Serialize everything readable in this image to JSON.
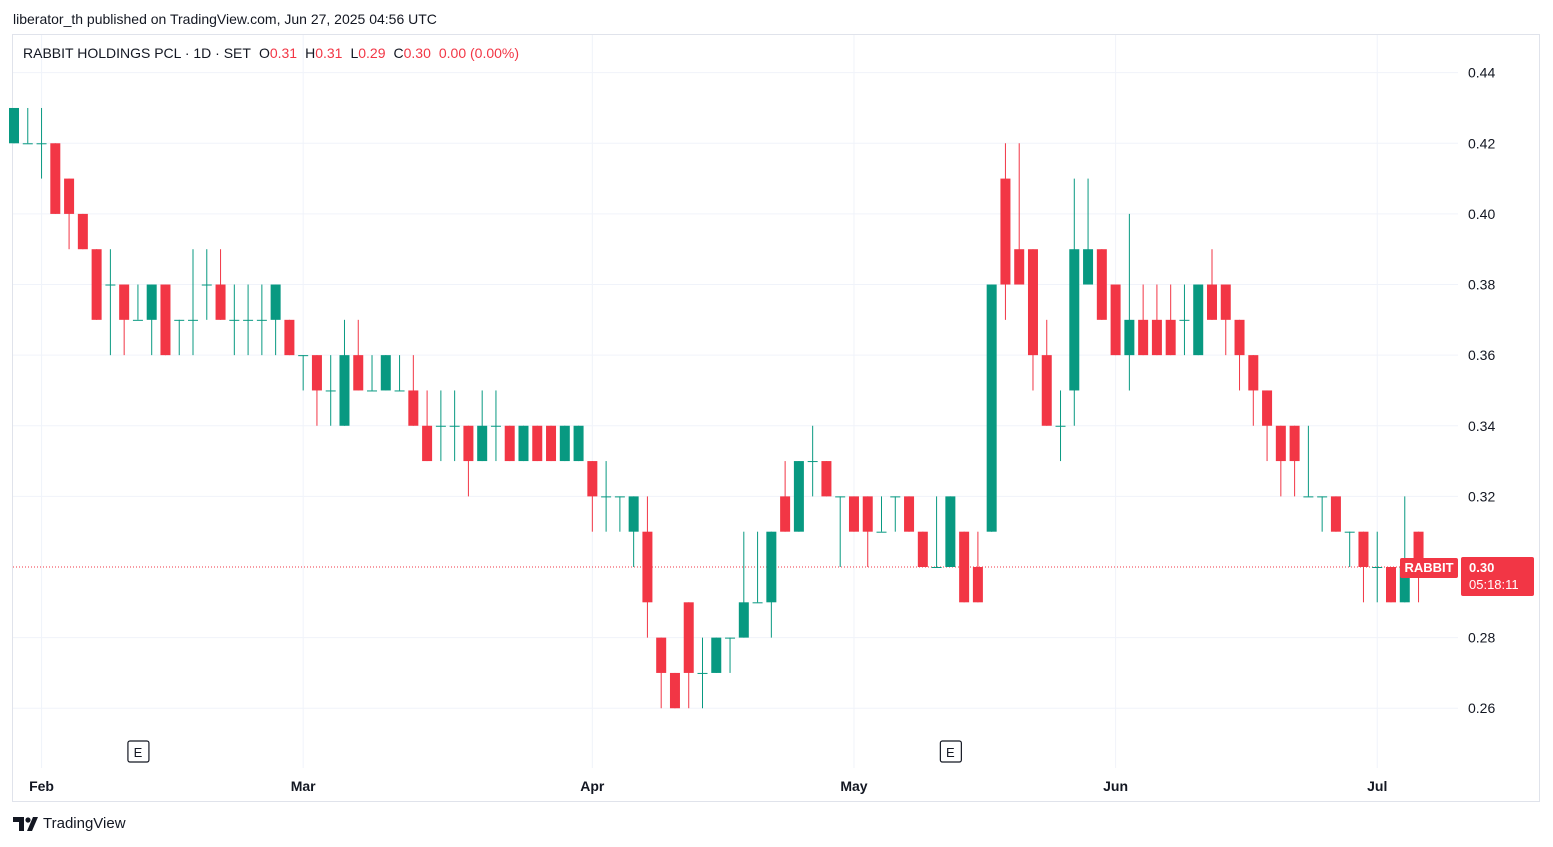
{
  "published_line": "liberator_th published on TradingView.com, Jun 27, 2025 04:56 UTC",
  "legend": {
    "symbol": "RABBIT HOLDINGS PCL · 1D · SET",
    "o_label": "O",
    "o_value": "0.31",
    "h_label": "H",
    "h_value": "0.31",
    "l_label": "L",
    "l_value": "0.29",
    "c_label": "C",
    "c_value": "0.30",
    "change": "0.00 (0.00%)"
  },
  "price_badge": {
    "ticker": "RABBIT",
    "price": "0.30",
    "countdown": "05:18:11"
  },
  "footer": {
    "brand": "TradingView"
  },
  "colors": {
    "up": "#089981",
    "down": "#f23645",
    "grid": "#f0f3fa",
    "text": "#131722"
  },
  "chart_data": {
    "type": "candlestick",
    "y_ticks": [
      "0.44",
      "0.42",
      "0.40",
      "0.38",
      "0.36",
      "0.34",
      "0.32",
      "0.28",
      "0.26"
    ],
    "ylim": [
      0.245,
      0.45
    ],
    "x_ticks": [
      {
        "label": "Feb",
        "day": 2
      },
      {
        "label": "Mar",
        "day": 21
      },
      {
        "label": "Apr",
        "day": 42
      },
      {
        "label": "May",
        "day": 61
      },
      {
        "label": "Jun",
        "day": 80
      },
      {
        "label": "Jul",
        "day": 99
      }
    ],
    "earnings_markers": [
      {
        "label": "E",
        "day": 9
      },
      {
        "label": "E",
        "day": 68
      }
    ],
    "last_price": 0.3,
    "ohlc": [
      [
        0.42,
        0.43,
        0.42,
        0.43
      ],
      [
        0.42,
        0.43,
        0.42,
        0.42
      ],
      [
        0.42,
        0.43,
        0.41,
        0.42
      ],
      [
        0.42,
        0.42,
        0.4,
        0.4
      ],
      [
        0.41,
        0.41,
        0.39,
        0.4
      ],
      [
        0.4,
        0.4,
        0.39,
        0.39
      ],
      [
        0.39,
        0.39,
        0.37,
        0.37
      ],
      [
        0.38,
        0.39,
        0.36,
        0.38
      ],
      [
        0.38,
        0.38,
        0.36,
        0.37
      ],
      [
        0.37,
        0.38,
        0.37,
        0.37
      ],
      [
        0.37,
        0.38,
        0.36,
        0.38
      ],
      [
        0.38,
        0.38,
        0.36,
        0.36
      ],
      [
        0.37,
        0.37,
        0.36,
        0.37
      ],
      [
        0.37,
        0.39,
        0.36,
        0.37
      ],
      [
        0.38,
        0.39,
        0.37,
        0.38
      ],
      [
        0.38,
        0.39,
        0.37,
        0.37
      ],
      [
        0.37,
        0.38,
        0.36,
        0.37
      ],
      [
        0.37,
        0.38,
        0.36,
        0.37
      ],
      [
        0.37,
        0.38,
        0.36,
        0.37
      ],
      [
        0.37,
        0.38,
        0.36,
        0.38
      ],
      [
        0.37,
        0.37,
        0.36,
        0.36
      ],
      [
        0.36,
        0.36,
        0.35,
        0.36
      ],
      [
        0.36,
        0.36,
        0.34,
        0.35
      ],
      [
        0.35,
        0.36,
        0.34,
        0.35
      ],
      [
        0.34,
        0.37,
        0.34,
        0.36
      ],
      [
        0.36,
        0.37,
        0.35,
        0.35
      ],
      [
        0.35,
        0.36,
        0.35,
        0.35
      ],
      [
        0.35,
        0.36,
        0.35,
        0.36
      ],
      [
        0.35,
        0.36,
        0.35,
        0.35
      ],
      [
        0.35,
        0.36,
        0.34,
        0.34
      ],
      [
        0.34,
        0.35,
        0.33,
        0.33
      ],
      [
        0.34,
        0.35,
        0.33,
        0.34
      ],
      [
        0.34,
        0.35,
        0.33,
        0.34
      ],
      [
        0.34,
        0.34,
        0.32,
        0.33
      ],
      [
        0.33,
        0.35,
        0.33,
        0.34
      ],
      [
        0.34,
        0.35,
        0.33,
        0.34
      ],
      [
        0.34,
        0.34,
        0.33,
        0.33
      ],
      [
        0.33,
        0.34,
        0.33,
        0.34
      ],
      [
        0.34,
        0.34,
        0.33,
        0.33
      ],
      [
        0.34,
        0.34,
        0.33,
        0.33
      ],
      [
        0.33,
        0.34,
        0.33,
        0.34
      ],
      [
        0.33,
        0.34,
        0.33,
        0.34
      ],
      [
        0.33,
        0.33,
        0.31,
        0.32
      ],
      [
        0.32,
        0.33,
        0.31,
        0.32
      ],
      [
        0.32,
        0.32,
        0.31,
        0.32
      ],
      [
        0.31,
        0.32,
        0.3,
        0.32
      ],
      [
        0.31,
        0.32,
        0.28,
        0.29
      ],
      [
        0.28,
        0.28,
        0.26,
        0.27
      ],
      [
        0.27,
        0.27,
        0.26,
        0.26
      ],
      [
        0.29,
        0.29,
        0.26,
        0.27
      ],
      [
        0.27,
        0.28,
        0.26,
        0.27
      ],
      [
        0.27,
        0.28,
        0.27,
        0.28
      ],
      [
        0.28,
        0.28,
        0.27,
        0.28
      ],
      [
        0.28,
        0.31,
        0.28,
        0.29
      ],
      [
        0.29,
        0.31,
        0.29,
        0.29
      ],
      [
        0.29,
        0.31,
        0.28,
        0.31
      ],
      [
        0.32,
        0.33,
        0.31,
        0.31
      ],
      [
        0.31,
        0.33,
        0.31,
        0.33
      ],
      [
        0.33,
        0.34,
        0.32,
        0.33
      ],
      [
        0.33,
        0.33,
        0.32,
        0.32
      ],
      [
        0.32,
        0.32,
        0.3,
        0.32
      ],
      [
        0.32,
        0.32,
        0.31,
        0.31
      ],
      [
        0.32,
        0.32,
        0.3,
        0.31
      ],
      [
        0.31,
        0.32,
        0.31,
        0.31
      ],
      [
        0.32,
        0.32,
        0.31,
        0.32
      ],
      [
        0.32,
        0.32,
        0.31,
        0.31
      ],
      [
        0.31,
        0.31,
        0.3,
        0.3
      ],
      [
        0.3,
        0.32,
        0.3,
        0.3
      ],
      [
        0.3,
        0.32,
        0.3,
        0.32
      ],
      [
        0.31,
        0.31,
        0.29,
        0.29
      ],
      [
        0.3,
        0.31,
        0.29,
        0.29
      ],
      [
        0.31,
        0.38,
        0.31,
        0.38
      ],
      [
        0.41,
        0.42,
        0.37,
        0.38
      ],
      [
        0.39,
        0.42,
        0.38,
        0.38
      ],
      [
        0.39,
        0.39,
        0.35,
        0.36
      ],
      [
        0.36,
        0.37,
        0.34,
        0.34
      ],
      [
        0.34,
        0.35,
        0.33,
        0.34
      ],
      [
        0.35,
        0.41,
        0.34,
        0.39
      ],
      [
        0.38,
        0.41,
        0.38,
        0.39
      ],
      [
        0.39,
        0.39,
        0.37,
        0.37
      ],
      [
        0.38,
        0.38,
        0.36,
        0.36
      ],
      [
        0.36,
        0.4,
        0.35,
        0.37
      ],
      [
        0.37,
        0.38,
        0.36,
        0.36
      ],
      [
        0.37,
        0.38,
        0.36,
        0.36
      ],
      [
        0.37,
        0.38,
        0.36,
        0.36
      ],
      [
        0.37,
        0.38,
        0.36,
        0.37
      ],
      [
        0.36,
        0.38,
        0.36,
        0.38
      ],
      [
        0.38,
        0.39,
        0.37,
        0.37
      ],
      [
        0.38,
        0.38,
        0.36,
        0.37
      ],
      [
        0.37,
        0.37,
        0.35,
        0.36
      ],
      [
        0.36,
        0.36,
        0.34,
        0.35
      ],
      [
        0.35,
        0.35,
        0.33,
        0.34
      ],
      [
        0.34,
        0.34,
        0.32,
        0.33
      ],
      [
        0.34,
        0.34,
        0.32,
        0.33
      ],
      [
        0.32,
        0.34,
        0.32,
        0.32
      ],
      [
        0.32,
        0.32,
        0.31,
        0.32
      ],
      [
        0.32,
        0.32,
        0.31,
        0.31
      ],
      [
        0.31,
        0.31,
        0.3,
        0.31
      ],
      [
        0.31,
        0.31,
        0.29,
        0.3
      ],
      [
        0.3,
        0.31,
        0.29,
        0.3
      ],
      [
        0.3,
        0.3,
        0.29,
        0.29
      ],
      [
        0.29,
        0.32,
        0.29,
        0.3
      ],
      [
        0.31,
        0.31,
        0.29,
        0.3
      ]
    ]
  }
}
